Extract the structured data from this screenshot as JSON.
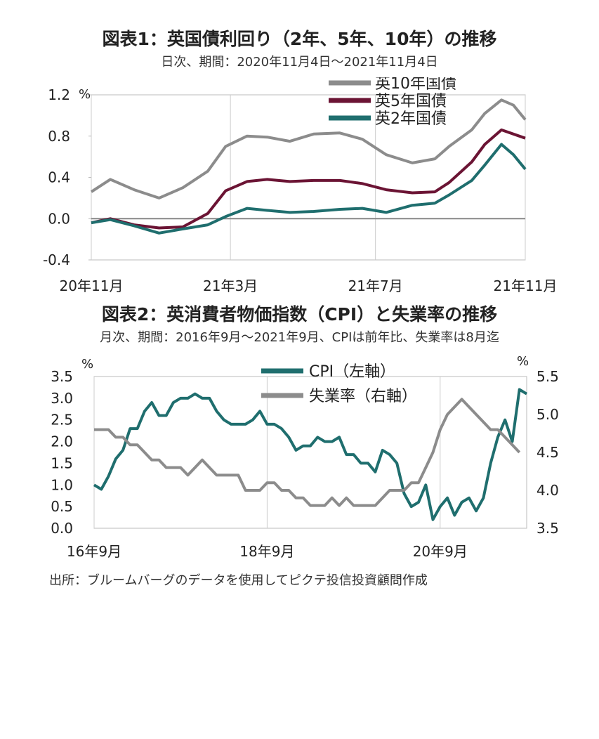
{
  "chart1_title": "図表1：英国債利回り（2年、5年、10年）の推移",
  "chart1_subtitle": "日次、期間：2020年11月4日～2021年11月4日",
  "chart2_title": "図表2：英消費者物価指数（CPI）と失業率の推移",
  "chart2_subtitle": "月次、期間：2016年9月～2021年9月、CPIは前年比、失業率は8月迄",
  "source": "出所：ブルームバーグのデータを使用してピクテ投信投資顧問作成",
  "chart_data": [
    {
      "type": "line",
      "ylabel": "%",
      "ylim": [
        -0.4,
        1.2
      ],
      "yticks": [
        "1.2",
        "0.8",
        "0.4",
        "0.0",
        "-0.4"
      ],
      "ytick_values": [
        1.2,
        0.8,
        0.4,
        0.0,
        -0.4
      ],
      "x_tick_labels": [
        "20年11月",
        "21年3月",
        "21年7月",
        "21年11月"
      ],
      "x_tick_dates": [
        "2020-11-04",
        "2021-03-01",
        "2021-07-01",
        "2021-11-04"
      ],
      "x_range": [
        "2020-11-04",
        "2021-11-04"
      ],
      "legend_position": "top-right",
      "series": [
        {
          "name": "英10年国債",
          "color": "#8c8c8c",
          "x": [
            "2020-11-04",
            "2020-11-20",
            "2020-12-10",
            "2020-12-31",
            "2021-01-20",
            "2021-02-10",
            "2021-02-25",
            "2021-03-15",
            "2021-04-01",
            "2021-04-20",
            "2021-05-10",
            "2021-06-01",
            "2021-06-20",
            "2021-07-10",
            "2021-08-01",
            "2021-08-20",
            "2021-09-01",
            "2021-09-20",
            "2021-10-01",
            "2021-10-15",
            "2021-10-25",
            "2021-11-04"
          ],
          "values": [
            0.26,
            0.38,
            0.28,
            0.2,
            0.3,
            0.46,
            0.7,
            0.8,
            0.79,
            0.75,
            0.82,
            0.83,
            0.77,
            0.62,
            0.54,
            0.58,
            0.7,
            0.86,
            1.02,
            1.15,
            1.1,
            0.96
          ]
        },
        {
          "name": "英5年国債",
          "color": "#6b1434",
          "x": [
            "2020-11-04",
            "2020-11-20",
            "2020-12-10",
            "2020-12-31",
            "2021-01-20",
            "2021-02-10",
            "2021-02-25",
            "2021-03-15",
            "2021-04-01",
            "2021-04-20",
            "2021-05-10",
            "2021-06-01",
            "2021-06-20",
            "2021-07-10",
            "2021-08-01",
            "2021-08-20",
            "2021-09-01",
            "2021-09-20",
            "2021-10-01",
            "2021-10-15",
            "2021-10-25",
            "2021-11-04"
          ],
          "values": [
            -0.04,
            0.0,
            -0.06,
            -0.09,
            -0.08,
            0.05,
            0.27,
            0.36,
            0.38,
            0.36,
            0.37,
            0.37,
            0.34,
            0.28,
            0.25,
            0.26,
            0.35,
            0.55,
            0.72,
            0.86,
            0.82,
            0.78
          ]
        },
        {
          "name": "英2年国債",
          "color": "#1f6e6e",
          "x": [
            "2020-11-04",
            "2020-11-20",
            "2020-12-10",
            "2020-12-31",
            "2021-01-20",
            "2021-02-10",
            "2021-02-25",
            "2021-03-15",
            "2021-04-01",
            "2021-04-20",
            "2021-05-10",
            "2021-06-01",
            "2021-06-20",
            "2021-07-10",
            "2021-08-01",
            "2021-08-20",
            "2021-09-01",
            "2021-09-20",
            "2021-10-01",
            "2021-10-15",
            "2021-10-25",
            "2021-11-04"
          ],
          "values": [
            -0.04,
            -0.01,
            -0.07,
            -0.14,
            -0.1,
            -0.06,
            0.02,
            0.1,
            0.08,
            0.06,
            0.07,
            0.09,
            0.1,
            0.06,
            0.13,
            0.15,
            0.23,
            0.37,
            0.52,
            0.72,
            0.62,
            0.48
          ]
        }
      ]
    },
    {
      "type": "line",
      "ylabel_left": "%",
      "ylabel_right": "%",
      "ylim_left": [
        0.0,
        3.5
      ],
      "ylim_right": [
        3.5,
        5.5
      ],
      "yticks_left": [
        "3.5",
        "3.0",
        "2.5",
        "2.0",
        "1.5",
        "1.0",
        "0.5",
        "0.0"
      ],
      "ytick_values_left": [
        3.5,
        3.0,
        2.5,
        2.0,
        1.5,
        1.0,
        0.5,
        0.0
      ],
      "yticks_right": [
        "5.5",
        "5.0",
        "4.5",
        "4.0",
        "3.5"
      ],
      "ytick_values_right": [
        5.5,
        5.0,
        4.5,
        4.0,
        3.5
      ],
      "x_tick_labels": [
        "16年9月",
        "18年9月",
        "20年9月"
      ],
      "x_tick_dates": [
        "2016-09",
        "2018-09",
        "2020-09"
      ],
      "x_range": [
        "2016-09",
        "2021-09"
      ],
      "legend_position": "top-center",
      "series": [
        {
          "name": "CPI（左軸）",
          "axis": "left",
          "color": "#1f6e6e",
          "x": [
            "2016-09",
            "2016-10",
            "2016-11",
            "2016-12",
            "2017-01",
            "2017-02",
            "2017-03",
            "2017-04",
            "2017-05",
            "2017-06",
            "2017-07",
            "2017-08",
            "2017-09",
            "2017-10",
            "2017-11",
            "2017-12",
            "2018-01",
            "2018-02",
            "2018-03",
            "2018-04",
            "2018-05",
            "2018-06",
            "2018-07",
            "2018-08",
            "2018-09",
            "2018-10",
            "2018-11",
            "2018-12",
            "2019-01",
            "2019-02",
            "2019-03",
            "2019-04",
            "2019-05",
            "2019-06",
            "2019-07",
            "2019-08",
            "2019-09",
            "2019-10",
            "2019-11",
            "2019-12",
            "2020-01",
            "2020-02",
            "2020-03",
            "2020-04",
            "2020-05",
            "2020-06",
            "2020-07",
            "2020-08",
            "2020-09",
            "2020-10",
            "2020-11",
            "2020-12",
            "2021-01",
            "2021-02",
            "2021-03",
            "2021-04",
            "2021-05",
            "2021-06",
            "2021-07",
            "2021-08",
            "2021-09"
          ],
          "values": [
            1.0,
            0.9,
            1.2,
            1.6,
            1.8,
            2.3,
            2.3,
            2.7,
            2.9,
            2.6,
            2.6,
            2.9,
            3.0,
            3.0,
            3.1,
            3.0,
            3.0,
            2.7,
            2.5,
            2.4,
            2.4,
            2.4,
            2.5,
            2.7,
            2.4,
            2.4,
            2.3,
            2.1,
            1.8,
            1.9,
            1.9,
            2.1,
            2.0,
            2.0,
            2.1,
            1.7,
            1.7,
            1.5,
            1.5,
            1.3,
            1.8,
            1.7,
            1.5,
            0.8,
            0.5,
            0.6,
            1.0,
            0.2,
            0.5,
            0.7,
            0.3,
            0.6,
            0.7,
            0.4,
            0.7,
            1.5,
            2.1,
            2.5,
            2.0,
            3.2,
            3.1
          ]
        },
        {
          "name": "失業率（右軸）",
          "axis": "right",
          "color": "#8c8c8c",
          "x": [
            "2016-09",
            "2016-10",
            "2016-11",
            "2016-12",
            "2017-01",
            "2017-02",
            "2017-03",
            "2017-04",
            "2017-05",
            "2017-06",
            "2017-07",
            "2017-08",
            "2017-09",
            "2017-10",
            "2017-11",
            "2017-12",
            "2018-01",
            "2018-02",
            "2018-03",
            "2018-04",
            "2018-05",
            "2018-06",
            "2018-07",
            "2018-08",
            "2018-09",
            "2018-10",
            "2018-11",
            "2018-12",
            "2019-01",
            "2019-02",
            "2019-03",
            "2019-04",
            "2019-05",
            "2019-06",
            "2019-07",
            "2019-08",
            "2019-09",
            "2019-10",
            "2019-11",
            "2019-12",
            "2020-01",
            "2020-02",
            "2020-03",
            "2020-04",
            "2020-05",
            "2020-06",
            "2020-07",
            "2020-08",
            "2020-09",
            "2020-10",
            "2020-11",
            "2020-12",
            "2021-01",
            "2021-02",
            "2021-03",
            "2021-04",
            "2021-05",
            "2021-06",
            "2021-07",
            "2021-08"
          ],
          "values": [
            4.8,
            4.8,
            4.8,
            4.7,
            4.7,
            4.6,
            4.6,
            4.5,
            4.4,
            4.4,
            4.3,
            4.3,
            4.3,
            4.2,
            4.3,
            4.4,
            4.3,
            4.2,
            4.2,
            4.2,
            4.2,
            4.0,
            4.0,
            4.0,
            4.1,
            4.1,
            4.0,
            4.0,
            3.9,
            3.9,
            3.8,
            3.8,
            3.8,
            3.9,
            3.8,
            3.9,
            3.8,
            3.8,
            3.8,
            3.8,
            3.9,
            4.0,
            4.0,
            4.0,
            4.1,
            4.1,
            4.3,
            4.5,
            4.8,
            5.0,
            5.1,
            5.2,
            5.1,
            5.0,
            4.9,
            4.8,
            4.8,
            4.7,
            4.6,
            4.5
          ]
        }
      ]
    }
  ]
}
